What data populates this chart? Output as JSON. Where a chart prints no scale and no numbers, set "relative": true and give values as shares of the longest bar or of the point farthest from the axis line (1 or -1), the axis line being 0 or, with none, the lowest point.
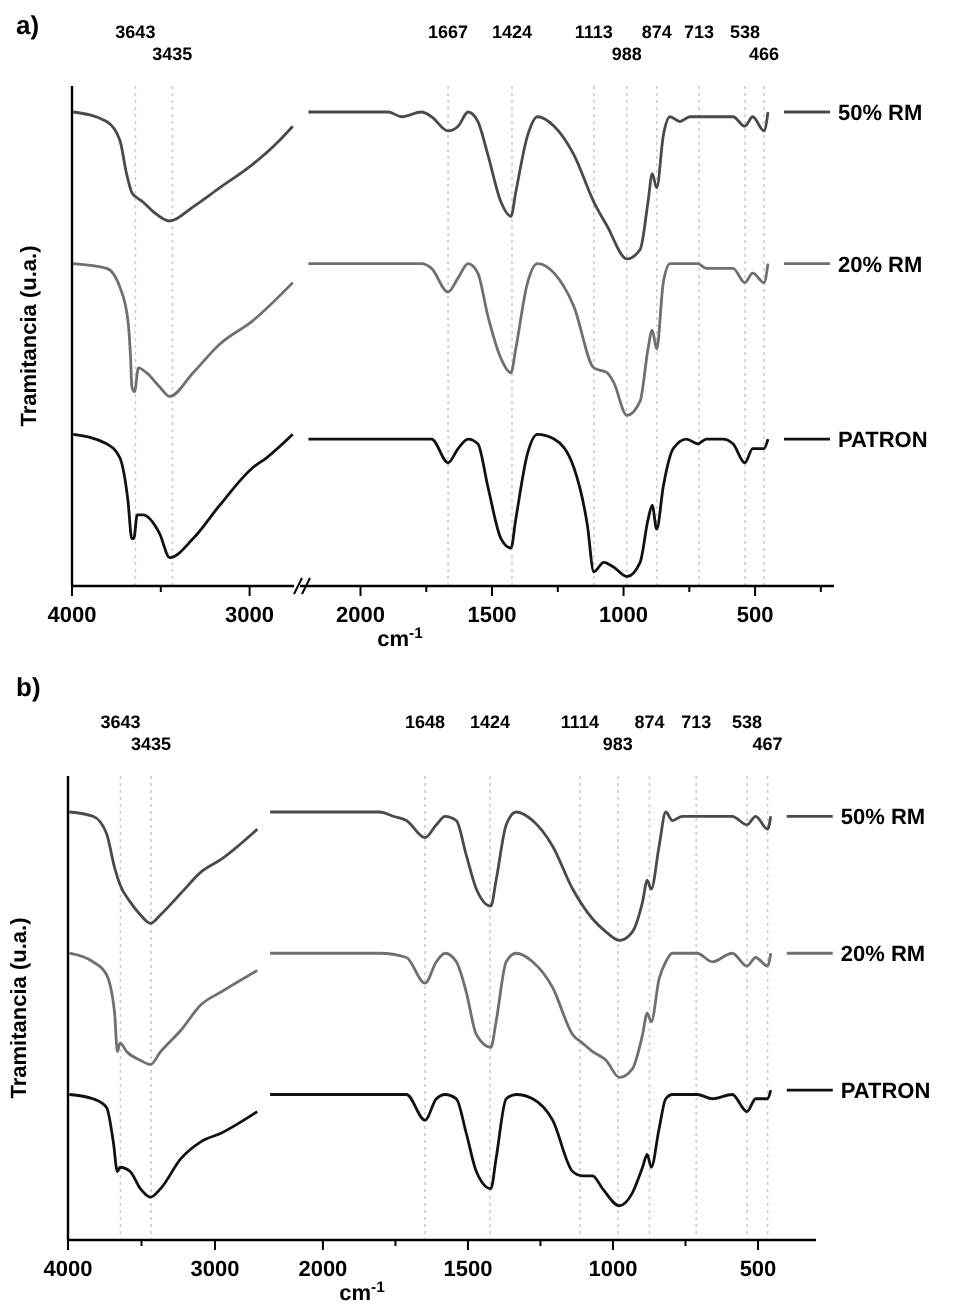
{
  "chart_data": [
    {
      "type": "line",
      "title": "a)",
      "ylabel": "Tramitancia (u.a.)",
      "relative": true,
      "xlim": [
        4000,
        2750
      ],
      "xticks": [
        4000,
        {
          "value": 3500,
          "label": null
        },
        3000
      ],
      "ref_lines": [
        {
          "axis": "x",
          "value": 3643,
          "label": "3643",
          "color": "#cccccc",
          "line_style": "dotted"
        },
        {
          "axis": "x",
          "value": 3435,
          "label": "3435",
          "color": "#cccccc",
          "line_style": "dotted"
        }
      ],
      "series": [
        {
          "color": "#4a4a4a",
          "x": [
            3993,
            3805,
            3730,
            3693,
            3663,
            3637,
            3600,
            3543,
            3450,
            3318,
            3169,
            2981,
            2832,
            2757
          ],
          "values": [
            1.0,
            0.98,
            0.94,
            0.87,
            0.83,
            0.82,
            0.81,
            0.79,
            0.77,
            0.8,
            0.84,
            0.89,
            0.94,
            0.97
          ]
        },
        {
          "color": "#707070",
          "x": [
            3993,
            3805,
            3730,
            3685,
            3670,
            3663,
            3648,
            3626,
            3581,
            3506,
            3450,
            3318,
            3169,
            2981,
            2757
          ],
          "values": [
            0.68,
            0.67,
            0.63,
            0.56,
            0.48,
            0.42,
            0.41,
            0.46,
            0.45,
            0.42,
            0.4,
            0.45,
            0.51,
            0.56,
            0.64
          ]
        },
        {
          "color": "#111111",
          "x": [
            3993,
            3805,
            3730,
            3685,
            3663,
            3652,
            3633,
            3600,
            3506,
            3450,
            3318,
            3169,
            2981,
            2906,
            2757
          ],
          "values": [
            0.32,
            0.3,
            0.27,
            0.18,
            0.1,
            0.1,
            0.15,
            0.15,
            0.11,
            0.06,
            0.1,
            0.17,
            0.25,
            0.27,
            0.32
          ]
        }
      ]
    },
    {
      "type": "line",
      "xlabel": "cm$^{-1}$",
      "relative": true,
      "legend": "right",
      "xlim": [
        2230,
        200
      ],
      "xticks": [
        2000,
        {
          "value": 1750,
          "label": null
        },
        1500,
        {
          "value": 1250,
          "label": null
        },
        1000,
        {
          "value": 750,
          "label": null
        },
        500,
        {
          "value": 250,
          "label": null
        }
      ],
      "ref_lines": [
        {
          "axis": "x",
          "value": 1667,
          "label": "1667",
          "color": "#cccccc",
          "line_style": "dotted"
        },
        {
          "axis": "x",
          "value": 1424,
          "label": "1424",
          "color": "#cccccc",
          "line_style": "dotted"
        },
        {
          "axis": "x",
          "value": 1113,
          "label": "1113",
          "color": "#cccccc",
          "line_style": "dotted"
        },
        {
          "axis": "x",
          "value": 988,
          "label": "988",
          "color": "#cccccc",
          "line_style": "dotted"
        },
        {
          "axis": "x",
          "value": 874,
          "label": "874",
          "color": "#cccccc",
          "line_style": "dotted"
        },
        {
          "axis": "x",
          "value": 713,
          "label": "713",
          "color": "#cccccc",
          "line_style": "dotted"
        },
        {
          "axis": "x",
          "value": 538,
          "label": "538",
          "color": "#cccccc",
          "line_style": "dotted"
        },
        {
          "axis": "x",
          "value": 466,
          "label": "466",
          "color": "#cccccc",
          "line_style": "dotted"
        }
      ],
      "series": [
        {
          "name": "50% RM",
          "color": "#4a4a4a",
          "x": [
            2198,
            1894,
            1843,
            1768,
            1730,
            1667,
            1629,
            1591,
            1554,
            1516,
            1466,
            1428,
            1410,
            1365,
            1327,
            1264,
            1189,
            1113,
            1063,
            987,
            937,
            907,
            891,
            874,
            849,
            823,
            786,
            748,
            718,
            685,
            584,
            539,
            509,
            466,
            451
          ],
          "values": [
            1.0,
            1.0,
            0.99,
            1.0,
            0.99,
            0.96,
            0.97,
            1.0,
            0.98,
            0.91,
            0.81,
            0.78,
            0.83,
            0.95,
            0.99,
            0.97,
            0.91,
            0.81,
            0.76,
            0.69,
            0.71,
            0.81,
            0.87,
            0.84,
            0.95,
            0.99,
            0.98,
            0.99,
            0.99,
            0.99,
            0.99,
            0.97,
            0.99,
            0.96,
            1.0
          ]
        },
        {
          "name": "20% RM",
          "color": "#707070",
          "x": [
            2198,
            1843,
            1768,
            1730,
            1667,
            1629,
            1591,
            1554,
            1516,
            1466,
            1428,
            1410,
            1365,
            1327,
            1264,
            1189,
            1113,
            1063,
            1038,
            987,
            937,
            907,
            891,
            874,
            849,
            823,
            748,
            718,
            685,
            584,
            539,
            509,
            466,
            451
          ],
          "values": [
            0.68,
            0.68,
            0.68,
            0.67,
            0.62,
            0.65,
            0.68,
            0.66,
            0.57,
            0.48,
            0.45,
            0.5,
            0.64,
            0.68,
            0.66,
            0.59,
            0.46,
            0.45,
            0.43,
            0.36,
            0.39,
            0.5,
            0.54,
            0.5,
            0.64,
            0.68,
            0.68,
            0.68,
            0.67,
            0.67,
            0.64,
            0.66,
            0.64,
            0.68
          ]
        },
        {
          "name": "PATRON",
          "color": "#111111",
          "x": [
            2198,
            1843,
            1768,
            1730,
            1667,
            1629,
            1591,
            1554,
            1516,
            1466,
            1428,
            1410,
            1365,
            1327,
            1264,
            1189,
            1138,
            1113,
            1075,
            1038,
            987,
            937,
            907,
            891,
            874,
            849,
            811,
            761,
            718,
            685,
            622,
            584,
            539,
            509,
            466,
            451
          ],
          "values": [
            0.31,
            0.31,
            0.31,
            0.31,
            0.26,
            0.29,
            0.31,
            0.3,
            0.21,
            0.1,
            0.08,
            0.14,
            0.28,
            0.32,
            0.31,
            0.25,
            0.13,
            0.03,
            0.05,
            0.04,
            0.02,
            0.05,
            0.14,
            0.17,
            0.12,
            0.21,
            0.29,
            0.31,
            0.3,
            0.31,
            0.31,
            0.3,
            0.26,
            0.29,
            0.29,
            0.31
          ]
        }
      ]
    },
    {
      "type": "line",
      "title": "b)",
      "ylabel": "Tramitancia (u.a.)",
      "relative": true,
      "xlim": [
        4000,
        2680
      ],
      "xticks": [
        4000,
        {
          "value": 3500,
          "label": null
        },
        3000
      ],
      "ref_lines": [
        {
          "axis": "x",
          "value": 3643,
          "label": "3643",
          "color": "#cccccc",
          "line_style": "dotted"
        },
        {
          "axis": "x",
          "value": 3435,
          "label": "3435",
          "color": "#cccccc",
          "line_style": "dotted"
        }
      ],
      "series": [
        {
          "color": "#4a4a4a",
          "x": [
            3991,
            3830,
            3738,
            3683,
            3646,
            3577,
            3508,
            3439,
            3370,
            3232,
            3094,
            2956,
            2712
          ],
          "values": [
            1.0,
            0.99,
            0.95,
            0.87,
            0.83,
            0.79,
            0.76,
            0.74,
            0.76,
            0.81,
            0.86,
            0.89,
            0.96
          ]
        },
        {
          "color": "#707070",
          "x": [
            3991,
            3830,
            3738,
            3683,
            3664,
            3646,
            3600,
            3508,
            3439,
            3370,
            3232,
            3094,
            2956,
            2712
          ],
          "values": [
            0.67,
            0.65,
            0.62,
            0.53,
            0.44,
            0.46,
            0.44,
            0.42,
            0.41,
            0.44,
            0.49,
            0.55,
            0.58,
            0.63
          ]
        },
        {
          "color": "#111111",
          "x": [
            3991,
            3830,
            3738,
            3692,
            3664,
            3646,
            3577,
            3508,
            3439,
            3370,
            3232,
            3094,
            2956,
            2712
          ],
          "values": [
            0.34,
            0.33,
            0.31,
            0.23,
            0.16,
            0.17,
            0.16,
            0.12,
            0.1,
            0.12,
            0.19,
            0.23,
            0.25,
            0.3
          ]
        }
      ]
    },
    {
      "type": "line",
      "xlabel": "cm$^{-1}$",
      "relative": true,
      "legend": "right",
      "xlim": [
        2210,
        300
      ],
      "xticks": [
        2000,
        {
          "value": 1750,
          "label": null
        },
        1500,
        {
          "value": 1250,
          "label": null
        },
        1000,
        {
          "value": 750,
          "label": null
        },
        500
      ],
      "ref_lines": [
        {
          "axis": "x",
          "value": 1648,
          "label": "1648",
          "color": "#cccccc",
          "line_style": "dotted"
        },
        {
          "axis": "x",
          "value": 1424,
          "label": "1424",
          "color": "#cccccc",
          "line_style": "dotted"
        },
        {
          "axis": "x",
          "value": 1114,
          "label": "1114",
          "color": "#cccccc",
          "line_style": "dotted"
        },
        {
          "axis": "x",
          "value": 983,
          "label": "983",
          "color": "#cccccc",
          "line_style": "dotted"
        },
        {
          "axis": "x",
          "value": 874,
          "label": "874",
          "color": "#cccccc",
          "line_style": "dotted"
        },
        {
          "axis": "x",
          "value": 713,
          "label": "713",
          "color": "#cccccc",
          "line_style": "dotted"
        },
        {
          "axis": "x",
          "value": 538,
          "label": "538",
          "color": "#cccccc",
          "line_style": "dotted"
        },
        {
          "axis": "x",
          "value": 467,
          "label": "467",
          "color": "#cccccc",
          "line_style": "dotted"
        }
      ],
      "series": [
        {
          "name": "50% RM",
          "color": "#4a4a4a",
          "x": [
            2182,
            1804,
            1758,
            1712,
            1648,
            1609,
            1579,
            1540,
            1506,
            1471,
            1421,
            1403,
            1368,
            1334,
            1277,
            1208,
            1139,
            1070,
            1024,
            978,
            933,
            898,
            882,
            868,
            841,
            818,
            795,
            761,
            710,
            657,
            589,
            538,
            508,
            467,
            456
          ],
          "values": [
            1.0,
            1.0,
            0.99,
            0.98,
            0.94,
            0.97,
            0.99,
            0.98,
            0.9,
            0.82,
            0.78,
            0.84,
            0.97,
            1.0,
            0.98,
            0.92,
            0.82,
            0.75,
            0.72,
            0.7,
            0.72,
            0.79,
            0.84,
            0.82,
            0.92,
            1.0,
            0.98,
            0.99,
            0.99,
            0.99,
            0.99,
            0.97,
            0.99,
            0.96,
            0.99
          ]
        },
        {
          "name": "20% RM",
          "color": "#707070",
          "x": [
            2182,
            1804,
            1712,
            1648,
            1609,
            1579,
            1540,
            1506,
            1471,
            1421,
            1403,
            1368,
            1334,
            1277,
            1208,
            1139,
            1105,
            1070,
            1024,
            978,
            933,
            898,
            882,
            868,
            841,
            818,
            795,
            710,
            657,
            589,
            538,
            508,
            467,
            456
          ],
          "values": [
            0.67,
            0.67,
            0.66,
            0.6,
            0.65,
            0.67,
            0.65,
            0.58,
            0.48,
            0.45,
            0.51,
            0.65,
            0.67,
            0.65,
            0.59,
            0.48,
            0.46,
            0.44,
            0.42,
            0.38,
            0.4,
            0.48,
            0.53,
            0.51,
            0.61,
            0.65,
            0.67,
            0.67,
            0.65,
            0.67,
            0.64,
            0.66,
            0.64,
            0.67
          ]
        },
        {
          "name": "PATRON",
          "color": "#111111",
          "x": [
            2182,
            1804,
            1712,
            1648,
            1609,
            1579,
            1540,
            1506,
            1471,
            1421,
            1403,
            1368,
            1334,
            1277,
            1208,
            1139,
            1105,
            1070,
            1036,
            978,
            933,
            898,
            882,
            868,
            841,
            818,
            795,
            710,
            657,
            589,
            538,
            508,
            467,
            456
          ],
          "values": [
            0.34,
            0.34,
            0.34,
            0.28,
            0.33,
            0.34,
            0.33,
            0.25,
            0.16,
            0.12,
            0.19,
            0.33,
            0.34,
            0.33,
            0.28,
            0.16,
            0.15,
            0.15,
            0.12,
            0.08,
            0.11,
            0.17,
            0.2,
            0.17,
            0.26,
            0.33,
            0.34,
            0.34,
            0.33,
            0.34,
            0.3,
            0.33,
            0.33,
            0.35
          ]
        }
      ]
    }
  ]
}
